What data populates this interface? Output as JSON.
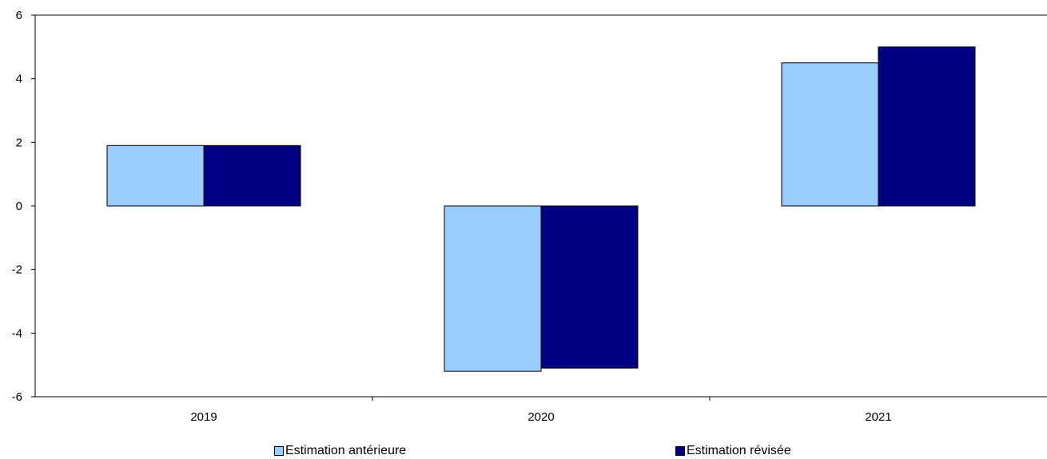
{
  "chart_data": {
    "type": "bar",
    "categories": [
      "2019",
      "2020",
      "2021"
    ],
    "series": [
      {
        "name": "Estimation antérieure",
        "values": [
          1.9,
          -5.2,
          4.5
        ],
        "color": "#99ccff"
      },
      {
        "name": "Estimation révisée",
        "values": [
          1.9,
          -5.1,
          5.0
        ],
        "color": "#000080"
      }
    ],
    "ylim": [
      -6,
      6
    ],
    "yticks": [
      6,
      4,
      2,
      0,
      -2,
      -4,
      -6
    ],
    "ytick_labels": [
      "6",
      "4",
      "2",
      "0",
      "-2",
      "-4",
      "-6"
    ],
    "grid": false,
    "legend_position": "bottom"
  }
}
